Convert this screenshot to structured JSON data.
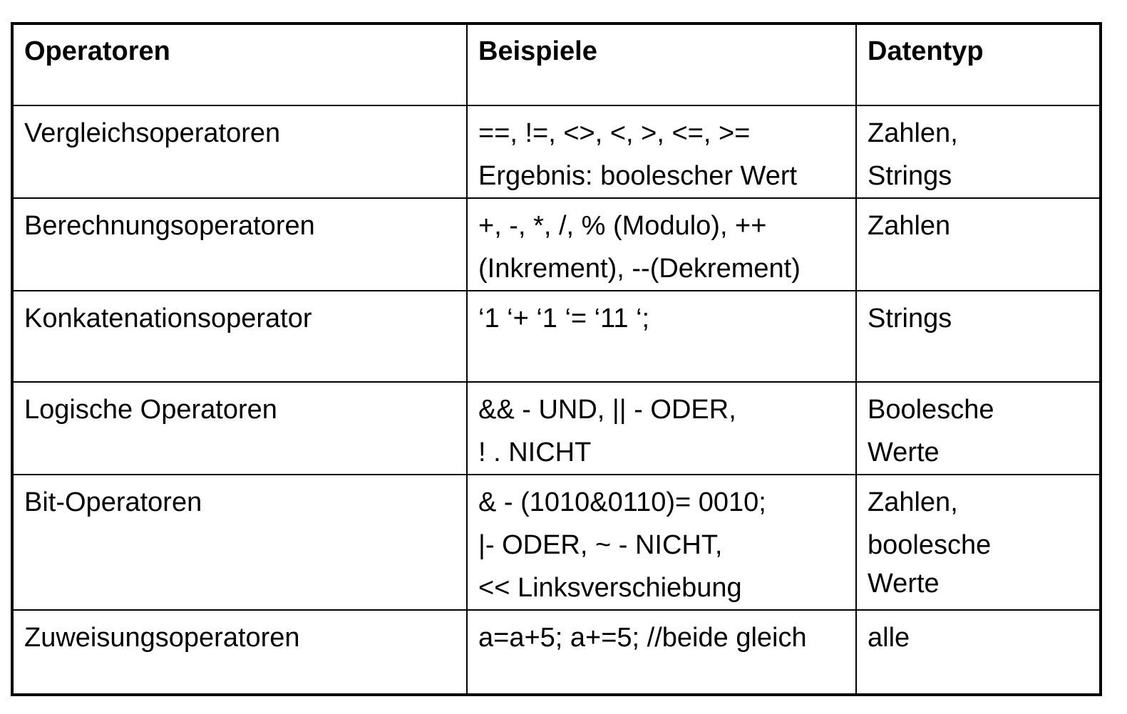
{
  "table": {
    "headers": {
      "operators": "Operatoren",
      "examples": "Beispiele",
      "datatype": "Datentyp"
    },
    "rows": [
      {
        "operator": "Vergleichsoperatoren",
        "examples": [
          "==, !=, <>, <, >, <=, >=",
          "Ergebnis: boolescher Wert"
        ],
        "datatype": [
          "Zahlen,",
          "Strings"
        ]
      },
      {
        "operator": "Berechnungsoperatoren",
        "examples": [
          "+, -, *, /, % (Modulo), ++",
          "(Inkrement), --(Dekrement)"
        ],
        "datatype": [
          "Zahlen"
        ]
      },
      {
        "operator": "Konkatenationsoperator",
        "examples": [
          "‘1 ‘+ ‘1 ‘= ‘11 ‘;"
        ],
        "datatype": [
          "Strings"
        ]
      },
      {
        "operator": "Logische Operatoren",
        "examples": [
          "&& - UND, || - ODER,",
          "! . NICHT"
        ],
        "datatype": [
          "Boolesche",
          "Werte"
        ]
      },
      {
        "operator": "Bit-Operatoren",
        "examples": [
          "& - (1010&0110)= 0010;",
          "|- ODER, ~ - NICHT,",
          "<< Linksverschiebung"
        ],
        "datatype": [
          "Zahlen,",
          "boolesche",
          "Werte"
        ]
      },
      {
        "operator": "Zuweisungsoperatoren",
        "examples": [
          "a=a+5; a+=5; //beide gleich"
        ],
        "datatype": [
          "alle"
        ]
      }
    ]
  }
}
